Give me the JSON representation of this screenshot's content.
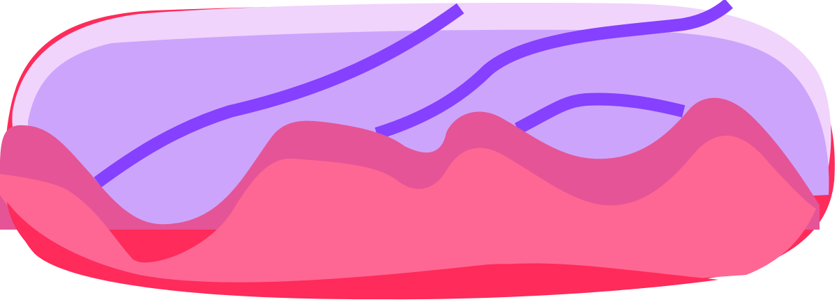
{
  "illustration": {
    "subject": "eclair-pastry",
    "icon": "eclair-icon",
    "colors": {
      "background": "#ffffff",
      "icing_highlight": "#f0d4fc",
      "icing_base": "#cda4fc",
      "drizzle": "#8640ff",
      "cream_dark": "#e55496",
      "cream_light": "#fe6793",
      "pastry_base": "#fe2b5b"
    }
  }
}
